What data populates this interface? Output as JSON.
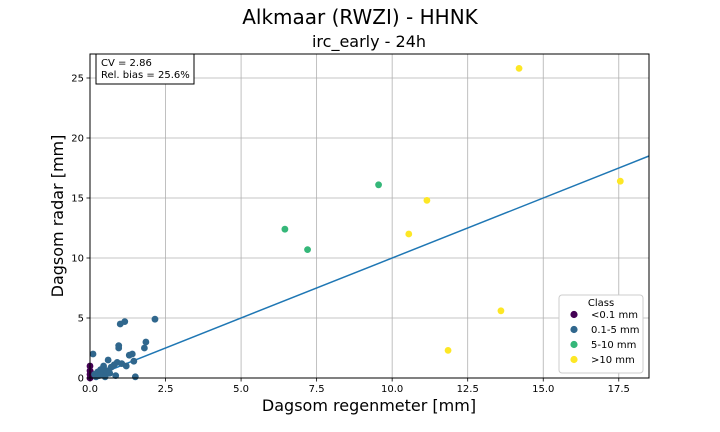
{
  "chart_data": {
    "type": "scatter",
    "title": "Alkmaar (RWZI) - HHNK",
    "subtitle": "irc_early - 24h",
    "xlabel": "Dagsom regenmeter [mm]",
    "ylabel": "Dagsom radar [mm]",
    "xlim": [
      0,
      18.5
    ],
    "ylim": [
      0,
      27
    ],
    "xticks": [
      0.0,
      2.5,
      5.0,
      7.5,
      10.0,
      12.5,
      15.0,
      17.5
    ],
    "xtick_labels": [
      "0.0",
      "2.5",
      "5.0",
      "7.5",
      "10.0",
      "12.5",
      "15.0",
      "17.5"
    ],
    "yticks": [
      0,
      5,
      10,
      15,
      20,
      25
    ],
    "ytick_labels": [
      "0",
      "5",
      "10",
      "15",
      "20",
      "25"
    ],
    "grid": true,
    "stats": {
      "cv": "CV = 2.86",
      "bias": "Rel. bias = 25.6%"
    },
    "stats_position": "top-left",
    "fit_line": {
      "slope": 1.0,
      "intercept": 0.0,
      "color": "#1f77b4"
    },
    "legend": {
      "title": "Class",
      "position": "bottom-right"
    },
    "series": [
      {
        "name": "<0.1 mm",
        "color": "#440154",
        "points": [
          [
            0.0,
            0.0
          ],
          [
            0.0,
            0.3
          ],
          [
            0.0,
            0.6
          ],
          [
            0.0,
            1.0
          ],
          [
            0.02,
            0.5
          ],
          [
            0.05,
            0.2
          ]
        ]
      },
      {
        "name": "0.1-5 mm",
        "color": "#30678d",
        "points": [
          [
            0.1,
            2.0
          ],
          [
            0.15,
            0.3
          ],
          [
            0.2,
            0.1
          ],
          [
            0.25,
            0.5
          ],
          [
            0.3,
            0.2
          ],
          [
            0.35,
            0.7
          ],
          [
            0.4,
            0.3
          ],
          [
            0.45,
            1.0
          ],
          [
            0.5,
            0.1
          ],
          [
            0.55,
            0.6
          ],
          [
            0.6,
            1.5
          ],
          [
            0.65,
            0.4
          ],
          [
            0.7,
            0.9
          ],
          [
            0.8,
            1.1
          ],
          [
            0.85,
            0.2
          ],
          [
            0.9,
            1.3
          ],
          [
            0.95,
            2.5
          ],
          [
            0.95,
            2.7
          ],
          [
            1.0,
            4.5
          ],
          [
            1.05,
            1.2
          ],
          [
            1.15,
            4.7
          ],
          [
            1.2,
            1.0
          ],
          [
            1.3,
            1.9
          ],
          [
            1.4,
            2.0
          ],
          [
            1.45,
            1.4
          ],
          [
            1.5,
            0.1
          ],
          [
            1.8,
            2.5
          ],
          [
            1.85,
            3.0
          ],
          [
            2.15,
            4.9
          ]
        ]
      },
      {
        "name": "5-10 mm",
        "color": "#35b779",
        "points": [
          [
            6.45,
            12.4
          ],
          [
            7.2,
            10.7
          ],
          [
            9.55,
            16.1
          ]
        ]
      },
      {
        "name": ">10 mm",
        "color": "#fde725",
        "points": [
          [
            10.55,
            12.0
          ],
          [
            11.15,
            14.8
          ],
          [
            11.85,
            2.3
          ],
          [
            13.6,
            5.6
          ],
          [
            14.2,
            25.8
          ],
          [
            17.55,
            16.4
          ]
        ]
      }
    ]
  }
}
